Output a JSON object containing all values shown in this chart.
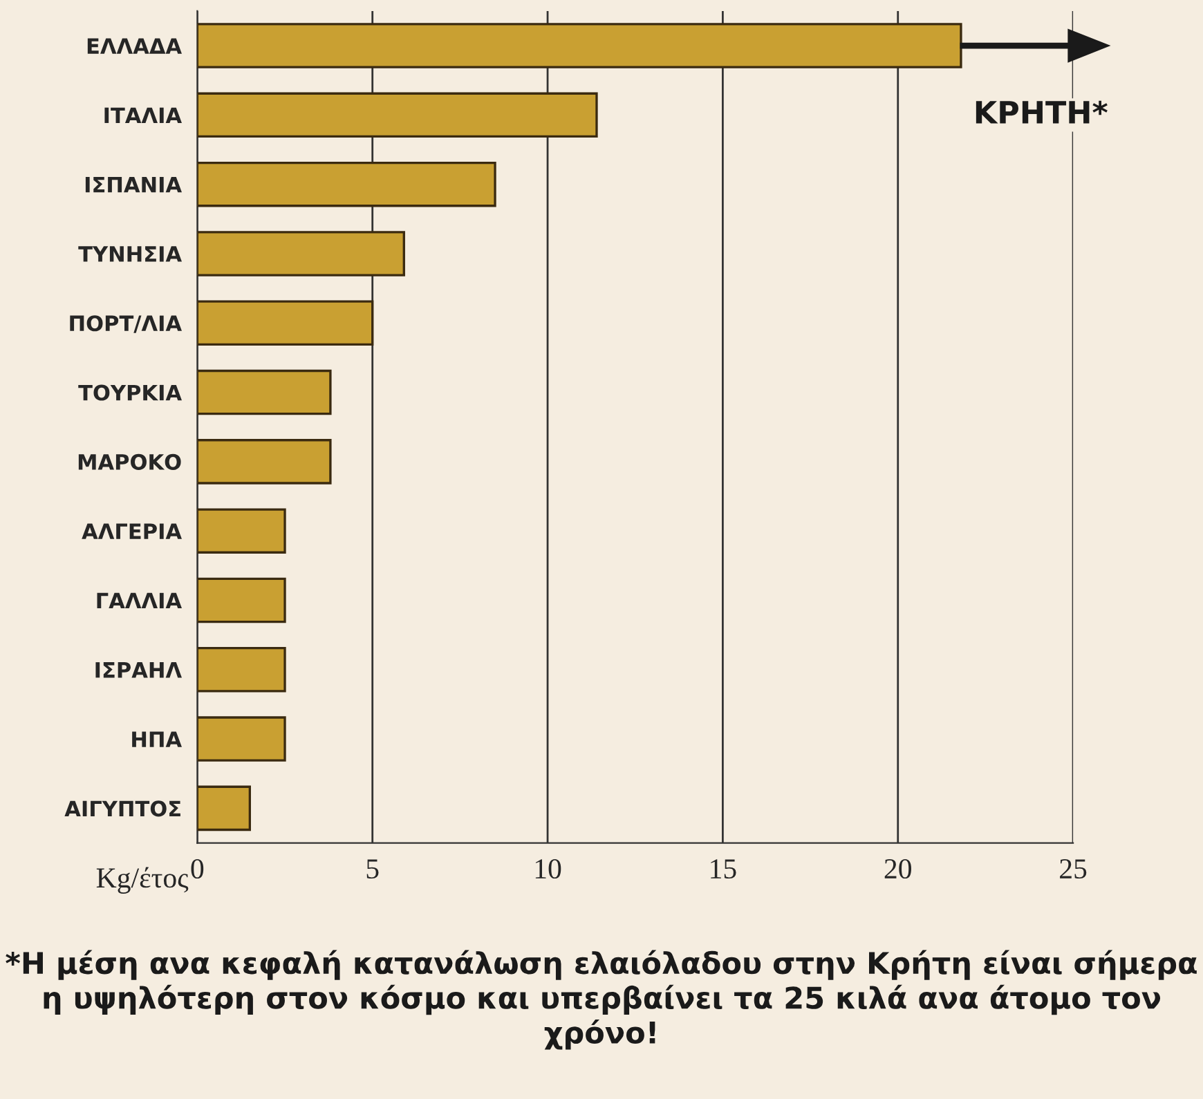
{
  "chart_data": {
    "type": "bar",
    "orientation": "horizontal",
    "categories": [
      "ΕΛΛΑΔΑ",
      "ΙΤΑΛΙΑ",
      "ΙΣΠΑΝΙΑ",
      "ΤΥΝΗΣΙΑ",
      "ΠΟΡΤ/ΛΙΑ",
      "ΤΟΥΡΚΙΑ",
      "ΜΑΡΟΚΟ",
      "ΑΛΓΕΡΙΑ",
      "ΓΑΛΛΙΑ",
      "ΙΣΡΑΗΛ",
      "ΗΠΑ",
      "ΑΙΓΥΠΤΟΣ"
    ],
    "values": [
      21.8,
      11.4,
      8.5,
      5.9,
      5.0,
      3.8,
      3.8,
      2.5,
      2.5,
      2.5,
      2.5,
      1.5
    ],
    "color": "#c9a032",
    "xlabel": "Kg/έτος",
    "xlim": [
      0,
      25
    ],
    "xticks": [
      0,
      5,
      10,
      15,
      20,
      25
    ],
    "grid": "x",
    "annotations": [
      "ΚΡΗΤΗ*",
      "*Η μέση ανα κεφαλή κατανάλωση ελαιόλαδου στην Κρήτη είναι σήμερα η υψηλότερη στον κόσμο και υπερβαίνει τα 25 κιλά ανα άτομο τον χρόνο!"
    ]
  }
}
